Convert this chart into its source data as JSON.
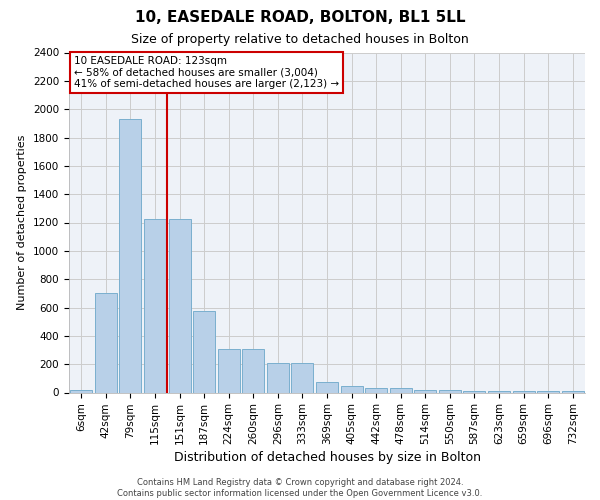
{
  "title": "10, EASEDALE ROAD, BOLTON, BL1 5LL",
  "subtitle": "Size of property relative to detached houses in Bolton",
  "xlabel": "Distribution of detached houses by size in Bolton",
  "ylabel": "Number of detached properties",
  "footer_line1": "Contains HM Land Registry data © Crown copyright and database right 2024.",
  "footer_line2": "Contains public sector information licensed under the Open Government Licence v3.0.",
  "bin_labels": [
    "6sqm",
    "42sqm",
    "79sqm",
    "115sqm",
    "151sqm",
    "187sqm",
    "224sqm",
    "260sqm",
    "296sqm",
    "333sqm",
    "369sqm",
    "405sqm",
    "442sqm",
    "478sqm",
    "514sqm",
    "550sqm",
    "587sqm",
    "623sqm",
    "659sqm",
    "696sqm",
    "732sqm"
  ],
  "bar_values": [
    15,
    700,
    1930,
    1225,
    1225,
    575,
    305,
    305,
    205,
    205,
    75,
    45,
    35,
    35,
    20,
    20,
    10,
    10,
    10,
    10,
    10
  ],
  "bar_color": "#b8d0e8",
  "bar_edgecolor": "#7aafce",
  "property_line_x": 3.5,
  "property_line_color": "#cc0000",
  "annotation_text": "10 EASEDALE ROAD: 123sqm\n← 58% of detached houses are smaller (3,004)\n41% of semi-detached houses are larger (2,123) →",
  "annotation_box_color": "#cc0000",
  "ylim": [
    0,
    2400
  ],
  "yticks": [
    0,
    200,
    400,
    600,
    800,
    1000,
    1200,
    1400,
    1600,
    1800,
    2000,
    2200,
    2400
  ],
  "grid_color": "#cccccc",
  "background_color": "#eef2f8",
  "title_fontsize": 11,
  "subtitle_fontsize": 9,
  "xlabel_fontsize": 9,
  "ylabel_fontsize": 8,
  "tick_fontsize": 7.5,
  "annotation_fontsize": 7.5,
  "footer_fontsize": 6
}
